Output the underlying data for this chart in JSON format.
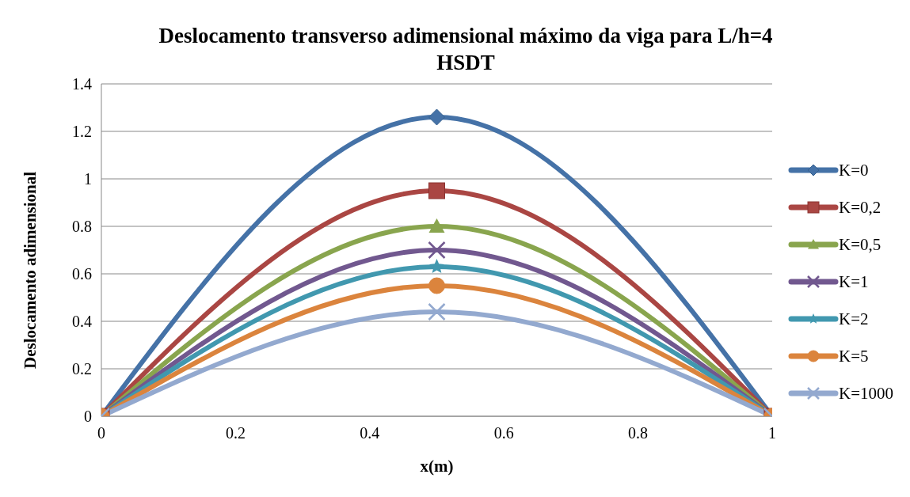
{
  "chart_data": {
    "type": "line",
    "title": "Deslocamento transverso adimensional máximo da viga para L/h=4 HSDT",
    "xlabel": "x(m)",
    "ylabel": "Deslocamento adimensional",
    "x": [
      0,
      0.5,
      1
    ],
    "series": [
      {
        "name": "K=0",
        "color": "#4572a7",
        "marker": "diamond",
        "values": [
          0,
          1.26,
          0
        ]
      },
      {
        "name": "K=0,2",
        "color": "#aa4643",
        "marker": "square",
        "values": [
          0,
          0.95,
          0
        ]
      },
      {
        "name": "K=0,5",
        "color": "#89a54e",
        "marker": "triangle",
        "values": [
          0,
          0.8,
          0
        ]
      },
      {
        "name": "K=1",
        "color": "#71588f",
        "marker": "cross",
        "values": [
          0,
          0.7,
          0
        ]
      },
      {
        "name": "K=2",
        "color": "#4198af",
        "marker": "star",
        "values": [
          0,
          0.63,
          0
        ]
      },
      {
        "name": "K=5",
        "color": "#db843d",
        "marker": "circle",
        "values": [
          0,
          0.55,
          0
        ]
      },
      {
        "name": "K=1000",
        "color": "#93a9cf",
        "marker": "cross",
        "values": [
          0,
          0.44,
          0
        ]
      }
    ],
    "xlim": [
      0,
      1
    ],
    "xticks": [
      0,
      0.2,
      0.4,
      0.6,
      0.8,
      1
    ],
    "ylim": [
      0,
      1.4
    ],
    "yticks": [
      0,
      0.2,
      0.4,
      0.6,
      0.8,
      1,
      1.2,
      1.4
    ],
    "grid": "y",
    "legend": "right",
    "line_style": "solid"
  }
}
